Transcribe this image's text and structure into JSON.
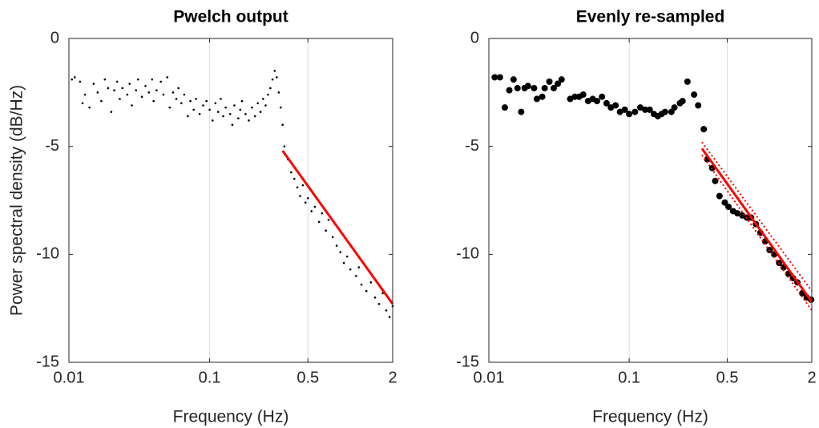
{
  "chart_data": [
    {
      "type": "scatter",
      "title": "Pwelch output",
      "xlabel": "Frequency (Hz)",
      "ylabel": "Power spectral density (dB/Hz)",
      "xscale": "log",
      "xlim": [
        0.01,
        2
      ],
      "xticks": [
        0.01,
        0.1,
        0.5,
        2
      ],
      "ylim": [
        -15,
        0
      ],
      "yticks": [
        -15,
        -10,
        -5,
        0
      ],
      "xgrid": true,
      "series": [
        {
          "kind": "scatter",
          "color": "#000000",
          "marker_size": 1.3,
          "x": [
            0.0105,
            0.011,
            0.012,
            0.0125,
            0.013,
            0.014,
            0.015,
            0.016,
            0.017,
            0.018,
            0.019,
            0.02,
            0.021,
            0.022,
            0.023,
            0.024,
            0.026,
            0.027,
            0.028,
            0.03,
            0.031,
            0.033,
            0.035,
            0.037,
            0.039,
            0.04,
            0.042,
            0.045,
            0.047,
            0.05,
            0.052,
            0.055,
            0.058,
            0.06,
            0.063,
            0.066,
            0.07,
            0.073,
            0.077,
            0.08,
            0.085,
            0.09,
            0.095,
            0.1,
            0.105,
            0.11,
            0.115,
            0.12,
            0.125,
            0.13,
            0.14,
            0.145,
            0.15,
            0.16,
            0.165,
            0.17,
            0.18,
            0.19,
            0.2,
            0.21,
            0.22,
            0.23,
            0.24,
            0.25,
            0.26,
            0.27,
            0.28,
            0.29,
            0.3,
            0.31,
            0.32,
            0.33,
            0.34,
            0.36,
            0.38,
            0.4,
            0.42,
            0.44,
            0.46,
            0.48,
            0.5,
            0.53,
            0.56,
            0.6,
            0.63,
            0.67,
            0.7,
            0.75,
            0.8,
            0.85,
            0.9,
            0.95,
            1.0,
            1.1,
            1.15,
            1.2,
            1.3,
            1.4,
            1.5,
            1.6,
            1.7,
            1.8,
            1.9,
            2.0
          ],
          "values": [
            -1.9,
            -1.8,
            -2.0,
            -3.0,
            -2.6,
            -3.2,
            -2.1,
            -2.5,
            -2.9,
            -1.9,
            -2.3,
            -3.4,
            -2.4,
            -2.0,
            -2.8,
            -2.3,
            -2.6,
            -2.1,
            -3.1,
            -2.4,
            -1.9,
            -2.7,
            -2.2,
            -2.5,
            -1.9,
            -2.9,
            -2.4,
            -2.0,
            -2.6,
            -1.8,
            -3.2,
            -2.5,
            -2.8,
            -2.3,
            -3.0,
            -2.6,
            -3.6,
            -2.9,
            -3.3,
            -2.8,
            -3.5,
            -3.1,
            -2.9,
            -3.3,
            -3.8,
            -3.0,
            -3.4,
            -2.8,
            -3.6,
            -3.2,
            -3.5,
            -4.0,
            -3.1,
            -3.7,
            -3.3,
            -2.9,
            -3.5,
            -3.8,
            -3.2,
            -3.6,
            -3.0,
            -3.4,
            -2.8,
            -3.1,
            -2.6,
            -2.3,
            -1.9,
            -1.5,
            -1.8,
            -2.5,
            -3.2,
            -4.0,
            -5.0,
            -5.6,
            -6.2,
            -6.5,
            -6.9,
            -7.3,
            -6.8,
            -7.6,
            -7.4,
            -8.0,
            -7.8,
            -8.5,
            -8.1,
            -8.9,
            -8.4,
            -9.2,
            -9.6,
            -9.9,
            -10.4,
            -10.1,
            -10.7,
            -11.0,
            -10.6,
            -11.4,
            -11.7,
            -11.3,
            -12.0,
            -12.3,
            -11.8,
            -12.6,
            -12.9,
            -12.4
          ]
        },
        {
          "kind": "line",
          "color": "#ff0000",
          "width": 3,
          "x": [
            0.33,
            2
          ],
          "values": [
            -5.2,
            -12.3
          ]
        }
      ]
    },
    {
      "type": "scatter",
      "title": "Evenly re-sampled",
      "xlabel": "Frequency (Hz)",
      "xscale": "log",
      "xlim": [
        0.01,
        2
      ],
      "xticks": [
        0.01,
        0.1,
        0.5,
        2
      ],
      "ylim": [
        -15,
        0
      ],
      "yticks": [
        -15,
        -10,
        -5,
        0
      ],
      "xgrid": true,
      "series": [
        {
          "kind": "scatter",
          "color": "#000000",
          "marker_size": 4,
          "x": [
            0.011,
            0.012,
            0.013,
            0.014,
            0.015,
            0.016,
            0.017,
            0.018,
            0.019,
            0.021,
            0.022,
            0.024,
            0.025,
            0.027,
            0.029,
            0.031,
            0.033,
            0.038,
            0.041,
            0.044,
            0.047,
            0.051,
            0.055,
            0.059,
            0.064,
            0.069,
            0.074,
            0.08,
            0.086,
            0.093,
            0.1,
            0.11,
            0.12,
            0.13,
            0.14,
            0.15,
            0.16,
            0.17,
            0.18,
            0.2,
            0.21,
            0.23,
            0.24,
            0.26,
            0.29,
            0.31,
            0.34,
            0.36,
            0.39,
            0.41,
            0.44,
            0.48,
            0.51,
            0.55,
            0.59,
            0.64,
            0.69,
            0.74,
            0.8,
            0.86,
            0.93,
            1.0,
            1.08,
            1.17,
            1.26,
            1.36,
            1.47,
            1.58,
            1.71,
            1.84,
            1.98
          ],
          "values": [
            -1.8,
            -1.8,
            -3.2,
            -2.4,
            -1.9,
            -2.3,
            -3.4,
            -2.3,
            -2.2,
            -2.3,
            -2.8,
            -2.7,
            -2.3,
            -2.0,
            -2.3,
            -2.1,
            -1.9,
            -2.8,
            -2.7,
            -2.7,
            -2.6,
            -2.9,
            -2.8,
            -2.9,
            -2.7,
            -3.0,
            -3.2,
            -3.1,
            -3.4,
            -3.3,
            -3.5,
            -3.4,
            -3.2,
            -3.3,
            -3.3,
            -3.5,
            -3.6,
            -3.5,
            -3.4,
            -3.4,
            -3.2,
            -3.0,
            -2.9,
            -2.0,
            -2.6,
            -3.1,
            -4.2,
            -5.6,
            -6.0,
            -6.6,
            -7.3,
            -7.6,
            -7.8,
            -8.0,
            -8.1,
            -8.2,
            -8.3,
            -8.3,
            -8.6,
            -9.0,
            -9.4,
            -9.8,
            -10.0,
            -10.4,
            -10.6,
            -10.9,
            -11.1,
            -11.3,
            -11.8,
            -12.0,
            -12.1
          ]
        },
        {
          "kind": "line",
          "color": "#ff0000",
          "width": 3,
          "x": [
            0.33,
            2
          ],
          "values": [
            -5.1,
            -12.2
          ]
        },
        {
          "kind": "line",
          "color": "#ff0000",
          "width": 2,
          "dash": "dotted",
          "x": [
            0.33,
            2
          ],
          "values": [
            -4.8,
            -11.7
          ]
        },
        {
          "kind": "line",
          "color": "#ff0000",
          "width": 2,
          "dash": "dotted",
          "x": [
            0.33,
            2
          ],
          "values": [
            -5.4,
            -12.6
          ]
        }
      ]
    }
  ]
}
